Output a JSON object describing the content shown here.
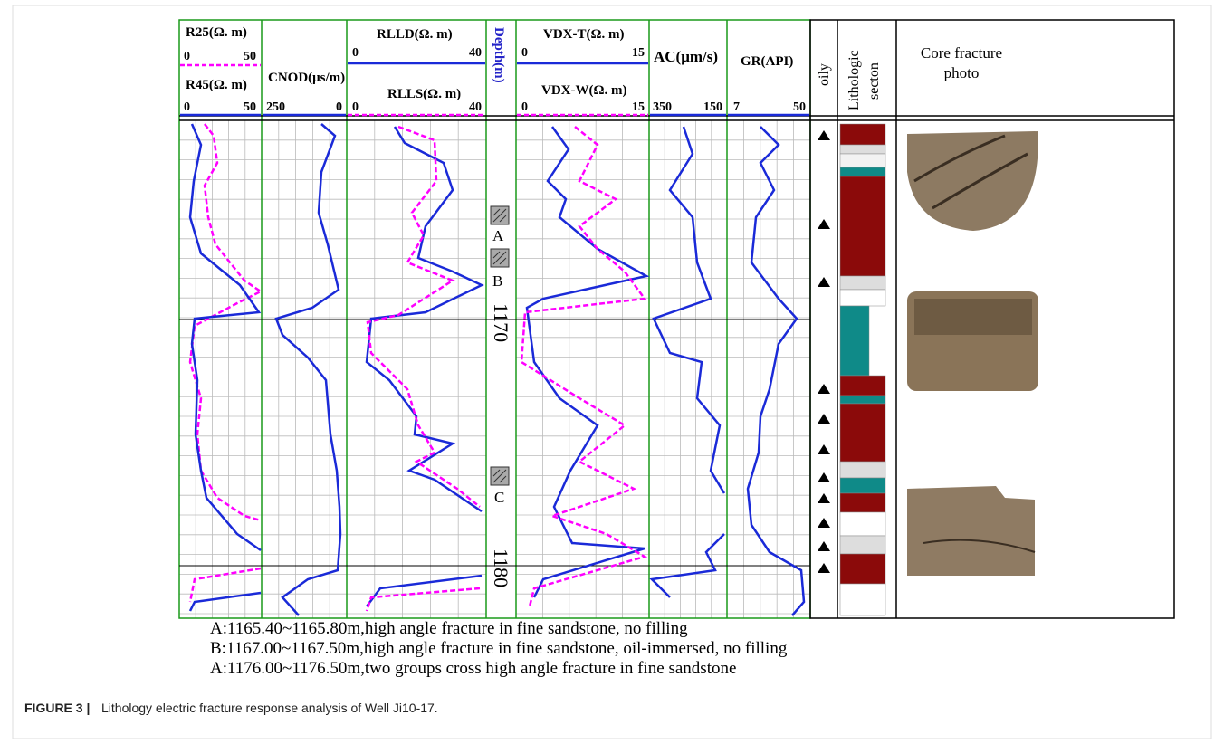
{
  "tracks": [
    {
      "curves": [
        {
          "name": "R25(Ω. m)",
          "left": 0,
          "right": 50
        },
        {
          "name": "R45(Ω. m)",
          "left": 0,
          "right": 50
        }
      ]
    },
    {
      "curves": [
        {
          "name": "CNOD(μs/m)",
          "left": 250,
          "right": 0
        }
      ]
    },
    {
      "curves": [
        {
          "name": "RLLD(Ω. m)",
          "left": 0,
          "right": 40
        },
        {
          "name": "RLLS(Ω. m)",
          "left": 0,
          "right": 40
        }
      ]
    },
    {
      "title": "Depth(m)"
    },
    {
      "curves": [
        {
          "name": "VDX-T(Ω. m)",
          "left": 0,
          "right": 15
        },
        {
          "name": "VDX-W(Ω. m)",
          "left": 0,
          "right": 15
        }
      ]
    },
    {
      "curves": [
        {
          "name": "AC(μm/s)",
          "left": 350,
          "right": 150
        }
      ]
    },
    {
      "curves": [
        {
          "name": "GR(API)",
          "left": 7,
          "right": 50
        }
      ]
    }
  ],
  "columns": {
    "oily": "oily",
    "lithologic": [
      "Lithologic",
      "secton"
    ],
    "photo": [
      "Core fracture",
      "photo"
    ]
  },
  "depth_labels": [
    1170,
    1180
  ],
  "samples": [
    "A",
    "B",
    "C"
  ],
  "notes": [
    "A:1165.40~1165.80m,high angle fracture in fine sandstone, no filling",
    "B:1167.00~1167.50m,high angle fracture in fine sandstone, oil-immersed, no filling",
    "A:1176.00~1176.50m,two groups cross high angle fracture in fine sandstone"
  ],
  "caption": {
    "label": "FIGURE 3 |",
    "text": "Lithology electric fracture response analysis of Well Ji10-17."
  }
}
